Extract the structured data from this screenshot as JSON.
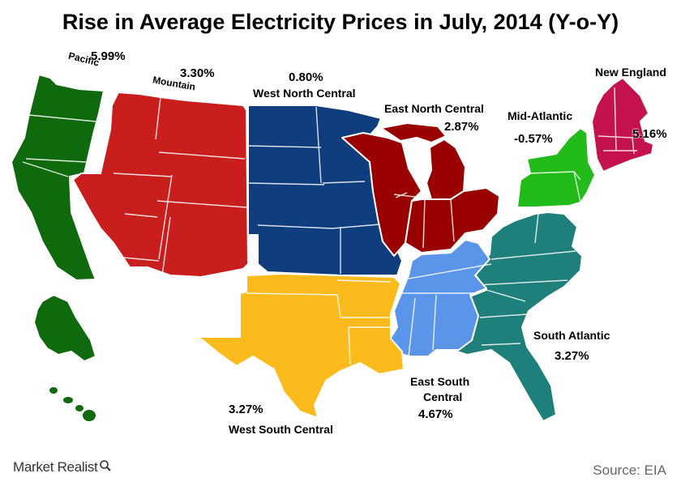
{
  "title": "Rise in Average Electricity Prices in July, 2014 (Y-o-Y)",
  "regions": {
    "pacific": {
      "name": "Pacific",
      "value": "5.99%",
      "color": "#0e6a0c"
    },
    "mountain": {
      "name": "Mountain",
      "value": "3.30%",
      "color": "#c81e1e"
    },
    "west_north_central": {
      "name": "West North Central",
      "value": "0.80%",
      "color": "#0f3d7d"
    },
    "east_north_central": {
      "name": "East North Central",
      "value": "2.87%",
      "color": "#990000"
    },
    "mid_atlantic": {
      "name": "Mid-Atlantic",
      "value": "-0.57%",
      "color": "#22bb1a"
    },
    "new_england": {
      "name": "New England",
      "value": "5.16%",
      "color": "#c4124e"
    },
    "south_atlantic": {
      "name": "South Atlantic",
      "value": "3.27%",
      "color": "#1f7f7a"
    },
    "east_south_central": {
      "name": "East South Central",
      "name_line1": "East South",
      "name_line2": "Central",
      "value": "4.67%",
      "color": "#5b95ea"
    },
    "west_south_central": {
      "name": "West South Central",
      "value": "3.27%",
      "color": "#fbbb1c"
    }
  },
  "brand": "Market Realist",
  "source": "Source: EIA"
}
